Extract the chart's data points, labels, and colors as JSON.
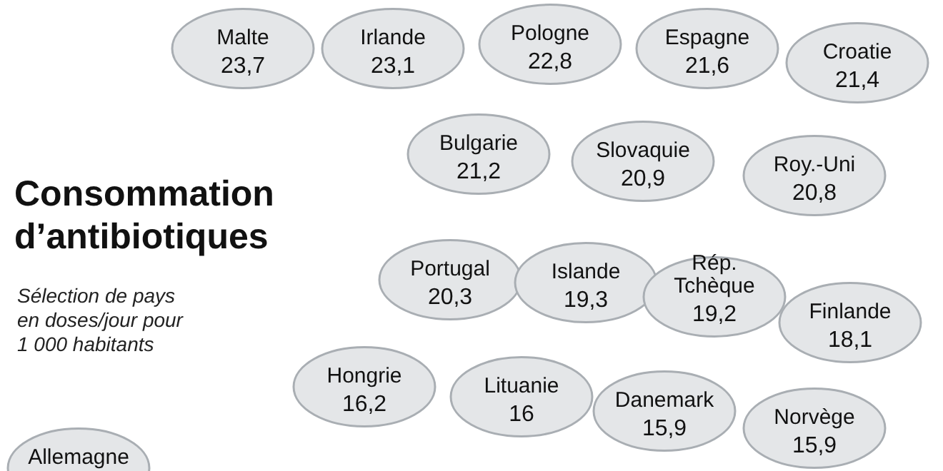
{
  "chart_data": {
    "type": "other",
    "title": "Consommation d’antibiotiques",
    "subtitle": "Sélection de pays en doses/jour pour 1 000 habitants",
    "categories": [
      "Malte",
      "Irlande",
      "Pologne",
      "Espagne",
      "Croatie",
      "Bulgarie",
      "Slovaquie",
      "Roy.-Uni",
      "Portugal",
      "Islande",
      "Rép. Tchèque",
      "Finlande",
      "Hongrie",
      "Lituanie",
      "Danemark",
      "Norvège",
      "Allemagne"
    ],
    "values": [
      23.7,
      23.1,
      22.8,
      21.6,
      21.4,
      21.2,
      20.9,
      20.8,
      20.3,
      19.3,
      19.2,
      18.1,
      16.2,
      16,
      15.9,
      15.9,
      null
    ],
    "value_labels": [
      "23,7",
      "23,1",
      "22,8",
      "21,6",
      "21,4",
      "21,2",
      "20,9",
      "20,8",
      "20,3",
      "19,3",
      "19,2",
      "18,1",
      "16,2",
      "16",
      "15,9",
      "15,9",
      null
    ],
    "color": "#e4e6e8"
  }
}
